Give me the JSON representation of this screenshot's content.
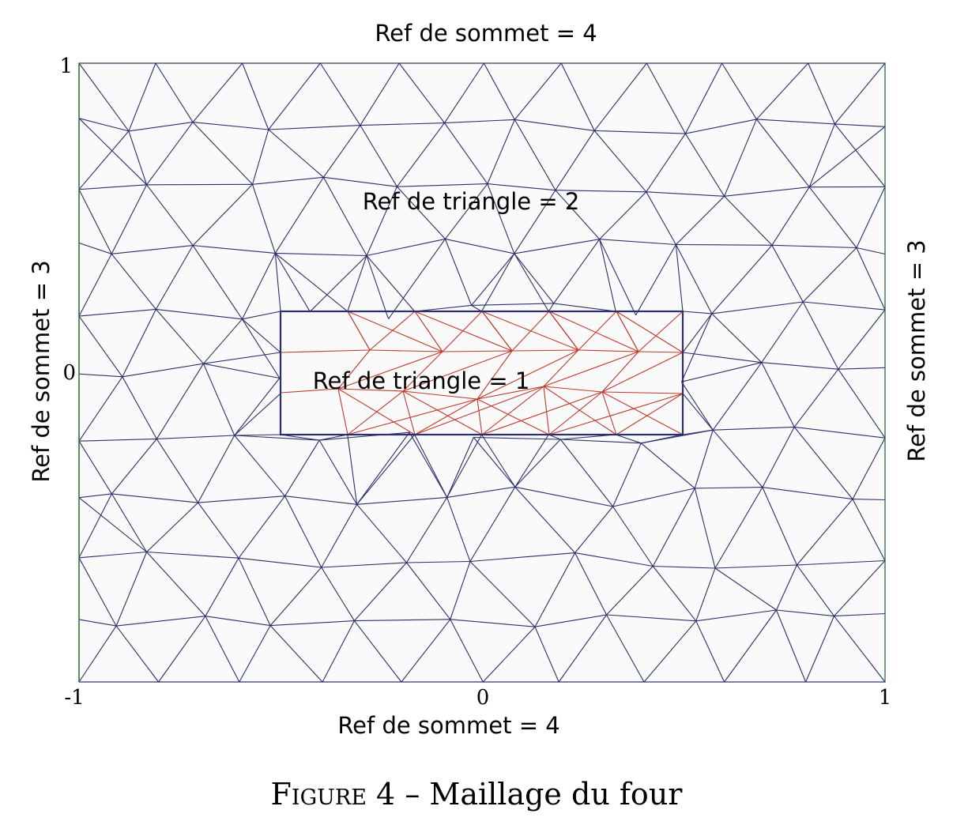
{
  "diagram": {
    "top_label": "Ref de sommet = 4",
    "bottom_label": "Ref de sommet = 4",
    "left_label": "Ref de sommet = 3",
    "right_label": "Ref de sommet = 3",
    "outer_region_label": "Ref de triangle = 2",
    "inner_region_label": "Ref de triangle = 1",
    "x_ticks": [
      "-1",
      "0",
      "1"
    ],
    "y_ticks": [
      "1",
      "0"
    ],
    "colors": {
      "outer_mesh": "#2b2f6b",
      "inner_mesh": "#c0392b",
      "boundary_left": "#2e7d32",
      "domain_fill": "#fafafa"
    }
  },
  "caption": {
    "figure_word": "Figure",
    "number": "4",
    "dash": "–",
    "text": "Maillage du four"
  }
}
